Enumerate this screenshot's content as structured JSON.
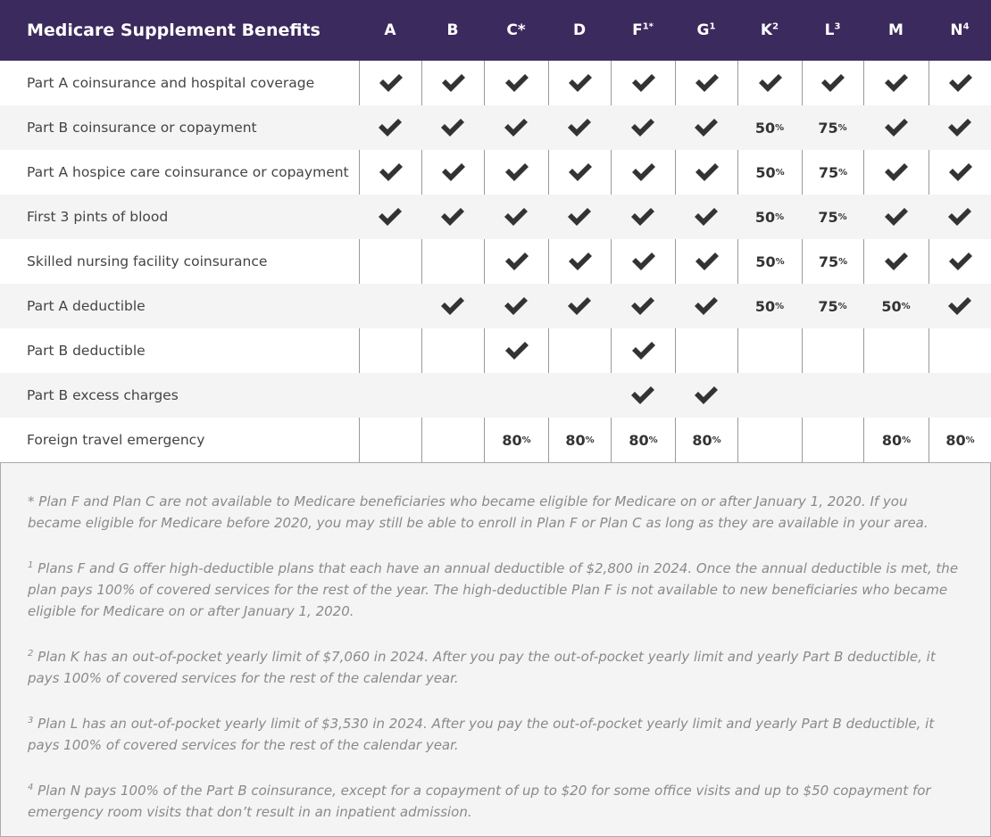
{
  "header": {
    "title": "Medicare Supplement Benefits",
    "columns": [
      {
        "label": "A"
      },
      {
        "label": "B"
      },
      {
        "label": "C*"
      },
      {
        "label": "D"
      },
      {
        "label": "F",
        "sup": "1*"
      },
      {
        "label": "G",
        "sup": "1"
      },
      {
        "label": "K",
        "sup": "2"
      },
      {
        "label": "L",
        "sup": "3"
      },
      {
        "label": "M"
      },
      {
        "label": "N",
        "sup": "4"
      }
    ]
  },
  "table": {
    "rows": [
      {
        "label": "Part A coinsurance and hospital coverage",
        "cells": [
          true,
          true,
          true,
          true,
          true,
          true,
          true,
          true,
          true,
          true
        ]
      },
      {
        "label": "Part B coinsurance or copayment",
        "cells": [
          true,
          true,
          true,
          true,
          true,
          true,
          {
            "num": 50,
            "unit": "%"
          },
          {
            "num": 75,
            "unit": "%"
          },
          true,
          true
        ]
      },
      {
        "label": "Part A hospice care coinsurance or copayment",
        "cells": [
          true,
          true,
          true,
          true,
          true,
          true,
          {
            "num": 50,
            "unit": "%"
          },
          {
            "num": 75,
            "unit": "%"
          },
          true,
          true
        ]
      },
      {
        "label": "First 3 pints of blood",
        "cells": [
          true,
          true,
          true,
          true,
          true,
          true,
          {
            "num": 50,
            "unit": "%"
          },
          {
            "num": 75,
            "unit": "%"
          },
          true,
          true
        ]
      },
      {
        "label": "Skilled nursing facility coinsurance",
        "cells": [
          null,
          null,
          true,
          true,
          true,
          true,
          {
            "num": 50,
            "unit": "%"
          },
          {
            "num": 75,
            "unit": "%"
          },
          true,
          true
        ]
      },
      {
        "label": "Part A deductible",
        "cells": [
          null,
          true,
          true,
          true,
          true,
          true,
          {
            "num": 50,
            "unit": "%"
          },
          {
            "num": 75,
            "unit": "%"
          },
          {
            "num": 50,
            "unit": "%"
          },
          true
        ]
      },
      {
        "label": "Part B deductible",
        "cells": [
          null,
          null,
          true,
          null,
          true,
          null,
          null,
          null,
          null,
          null
        ]
      },
      {
        "label": "Part B excess charges",
        "cells": [
          null,
          null,
          null,
          null,
          true,
          true,
          null,
          null,
          null,
          null
        ]
      },
      {
        "label": "Foreign travel emergency",
        "cells": [
          null,
          null,
          {
            "num": 80,
            "unit": "%"
          },
          {
            "num": 80,
            "unit": "%"
          },
          {
            "num": 80,
            "unit": "%"
          },
          {
            "num": 80,
            "unit": "%"
          },
          null,
          null,
          {
            "num": 80,
            "unit": "%"
          },
          {
            "num": 80,
            "unit": "%"
          }
        ]
      }
    ]
  },
  "footnotes": [
    {
      "marker": "*",
      "text": "Plan F and Plan C are not available to Medicare beneficiaries who became eligible for Medicare on or after January 1, 2020. If you became eligible for Medicare before 2020, you may still be able to enroll in Plan F or Plan C as long as they are available in your area."
    },
    {
      "marker": "1",
      "text": "Plans F and G offer high-deductible plans that each have an annual deductible of $2,800 in 2024. Once the annual deductible is met, the plan pays 100% of covered services for the rest of the year. The high-deductible Plan F is not available to new beneficiaries who became eligible for Medicare on or after January 1, 2020."
    },
    {
      "marker": "2",
      "text": "Plan K has an out-of-pocket yearly limit of $7,060 in 2024. After you pay the out-of-pocket yearly limit and yearly Part B deductible, it pays 100% of covered services for the rest of the calendar year."
    },
    {
      "marker": "3",
      "text": "Plan L has an out-of-pocket yearly limit of $3,530 in 2024. After you pay the out-of-pocket yearly limit and yearly Part B deductible, it pays 100% of covered services for the rest of the calendar year."
    },
    {
      "marker": "4",
      "text": "Plan N pays 100% of the Part B coinsurance, except for a copayment of up to $20 for some office visits and up to $50 copayment for emergency room visits that don’t result in an inpatient admission."
    }
  ]
}
